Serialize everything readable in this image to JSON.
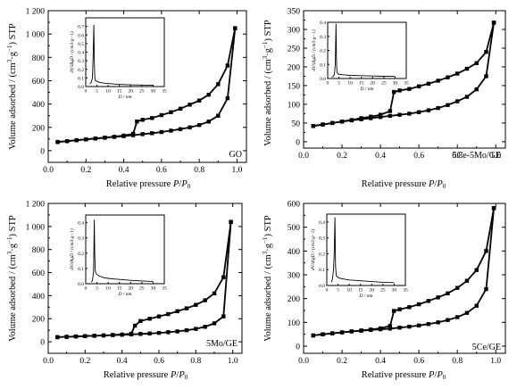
{
  "chart_data": [
    {
      "type": "line",
      "sample_label": "GO",
      "xlabel": "Relative pressure P/P0",
      "ylabel": "Volume adsorbed / (cm3·g−1) STP",
      "xlim": [
        0,
        1.05
      ],
      "ylim": [
        -100,
        1200
      ],
      "xticks": [
        "0.0",
        "0.2",
        "0.4",
        "0.6",
        "0.8",
        "1.0"
      ],
      "yticks": [
        "0",
        "200",
        "400",
        "600",
        "800",
        "1 000",
        "1 200"
      ],
      "series": [
        {
          "x": [
            0.05,
            0.1,
            0.15,
            0.2,
            0.25,
            0.3,
            0.35,
            0.4,
            0.45,
            0.5,
            0.55,
            0.6,
            0.65,
            0.7,
            0.75,
            0.8,
            0.85,
            0.9,
            0.95,
            0.99
          ],
          "y": [
            75,
            82,
            90,
            97,
            104,
            111,
            118,
            125,
            133,
            142,
            150,
            160,
            172,
            185,
            200,
            220,
            250,
            300,
            450,
            1050
          ]
        },
        {
          "x": [
            0.99,
            0.95,
            0.9,
            0.85,
            0.8,
            0.75,
            0.7,
            0.65,
            0.6,
            0.55,
            0.5,
            0.47,
            0.45,
            0.4,
            0.35,
            0.3,
            0.25,
            0.2,
            0.15,
            0.1,
            0.05
          ],
          "y": [
            1050,
            730,
            570,
            480,
            430,
            395,
            360,
            330,
            305,
            280,
            265,
            250,
            145,
            130,
            120,
            112,
            105,
            98,
            90,
            82,
            75
          ]
        }
      ],
      "inset": {
        "xlabel": "D / nm",
        "ylabel": "dV/dlgD / (cm3·g−1)",
        "xlim": [
          0,
          35
        ],
        "ylim": [
          0,
          0.8
        ],
        "xticks": [
          "0",
          "5",
          "10",
          "15",
          "20",
          "25",
          "30",
          "35"
        ],
        "yticks": [
          "0.0",
          "0.1",
          "0.2",
          "0.3",
          "0.4",
          "0.5",
          "0.6",
          "0.7"
        ],
        "x": [
          1.8,
          2.5,
          3.0,
          3.3,
          3.6,
          3.8,
          4.0,
          4.3,
          5.0,
          6.0,
          8.0,
          10,
          15,
          20,
          25,
          30
        ],
        "y": [
          0.03,
          0.05,
          0.1,
          0.35,
          0.72,
          0.3,
          0.12,
          0.07,
          0.06,
          0.05,
          0.04,
          0.035,
          0.025,
          0.02,
          0.018,
          0.015
        ]
      }
    },
    {
      "type": "line",
      "sample_label": "5Ce-5Mo/GE",
      "xlabel": "Relative pressure P/P0",
      "ylabel": "Volume adsorbed / (cm3·g−1) STP",
      "xlim": [
        0,
        1.05
      ],
      "ylim": [
        -17,
        350
      ],
      "xticks": [
        "0.0",
        "0.2",
        "0.4",
        "0.6",
        "0.8",
        "1.0"
      ],
      "yticks": [
        "0",
        "50",
        "100",
        "150",
        "200",
        "250",
        "300",
        "350"
      ],
      "series": [
        {
          "x": [
            0.05,
            0.1,
            0.15,
            0.2,
            0.25,
            0.3,
            0.35,
            0.4,
            0.45,
            0.5,
            0.55,
            0.6,
            0.65,
            0.7,
            0.75,
            0.8,
            0.85,
            0.9,
            0.95,
            0.99
          ],
          "y": [
            42,
            46,
            50,
            54,
            57,
            60,
            63,
            66,
            69,
            72,
            75,
            79,
            84,
            90,
            98,
            108,
            120,
            140,
            175,
            318
          ]
        },
        {
          "x": [
            0.99,
            0.95,
            0.9,
            0.85,
            0.8,
            0.75,
            0.7,
            0.65,
            0.6,
            0.55,
            0.5,
            0.47,
            0.45,
            0.4,
            0.35,
            0.3,
            0.25,
            0.2,
            0.15,
            0.1,
            0.05
          ],
          "y": [
            318,
            240,
            210,
            195,
            182,
            172,
            163,
            155,
            148,
            141,
            137,
            133,
            82,
            72,
            67,
            63,
            58,
            54,
            50,
            46,
            42
          ]
        }
      ],
      "inset": {
        "xlabel": "D / nm",
        "ylabel": "dV/dlgD / (cm3·g−1)",
        "xlim": [
          0,
          35
        ],
        "ylim": [
          0,
          0.4
        ],
        "xticks": [
          "0",
          "5",
          "10",
          "15",
          "20",
          "25",
          "30",
          "35"
        ],
        "yticks": [
          "0.0",
          "0.1",
          "0.2",
          "0.3",
          "0.4"
        ],
        "x": [
          1.8,
          2.5,
          3.0,
          3.4,
          3.7,
          3.9,
          4.1,
          4.4,
          5.0,
          6.0,
          8.0,
          10,
          15,
          20,
          25,
          30
        ],
        "y": [
          0.01,
          0.015,
          0.03,
          0.1,
          0.39,
          0.15,
          0.05,
          0.035,
          0.03,
          0.028,
          0.025,
          0.022,
          0.02,
          0.018,
          0.016,
          0.015
        ]
      }
    },
    {
      "type": "line",
      "sample_label": "5Mo/GE",
      "xlabel": "Relative pressure P/P0",
      "ylabel": "Volume adsorbed / (cm3·g−1) STP",
      "xlim": [
        0,
        1.05
      ],
      "ylim": [
        -100,
        1200
      ],
      "xticks": [
        "0.0",
        "0.2",
        "0.4",
        "0.6",
        "0.8",
        "1.0"
      ],
      "yticks": [
        "0",
        "200",
        "400",
        "600",
        "800",
        "1 000",
        "1 200"
      ],
      "series": [
        {
          "x": [
            0.05,
            0.1,
            0.15,
            0.2,
            0.25,
            0.3,
            0.35,
            0.4,
            0.45,
            0.5,
            0.55,
            0.6,
            0.65,
            0.7,
            0.75,
            0.8,
            0.85,
            0.9,
            0.95,
            0.99
          ],
          "y": [
            40,
            43,
            46,
            49,
            52,
            55,
            58,
            61,
            64,
            68,
            72,
            77,
            83,
            90,
            100,
            112,
            130,
            160,
            220,
            1040
          ]
        },
        {
          "x": [
            0.99,
            0.95,
            0.9,
            0.85,
            0.8,
            0.75,
            0.7,
            0.65,
            0.6,
            0.55,
            0.5,
            0.47,
            0.45,
            0.4,
            0.35,
            0.3,
            0.25,
            0.2,
            0.15,
            0.1,
            0.05
          ],
          "y": [
            1040,
            560,
            420,
            360,
            320,
            290,
            265,
            240,
            220,
            200,
            180,
            140,
            70,
            63,
            59,
            55,
            52,
            49,
            46,
            43,
            40
          ]
        }
      ],
      "inset": {
        "xlabel": "D / nm",
        "ylabel": "dV/dlgD / (cm3·g−1)",
        "xlim": [
          0,
          35
        ],
        "ylim": [
          0,
          0.45
        ],
        "xticks": [
          "0",
          "5",
          "10",
          "15",
          "20",
          "25",
          "30",
          "35"
        ],
        "yticks": [
          "0.0",
          "0.1",
          "0.2",
          "0.3",
          "0.4"
        ],
        "x": [
          2.5,
          3.0,
          3.5,
          3.8,
          4.0,
          4.2,
          4.5,
          5.0,
          6.0,
          8.0,
          10,
          15,
          20,
          25,
          30
        ],
        "y": [
          0.01,
          0.02,
          0.08,
          0.42,
          0.2,
          0.09,
          0.07,
          0.06,
          0.05,
          0.04,
          0.035,
          0.028,
          0.022,
          0.018,
          0.015
        ]
      }
    },
    {
      "type": "line",
      "sample_label": "5Ce/GE",
      "xlabel": "Relative pressure P/P0",
      "ylabel": "Volume adsorbed / (cm3·g−1) STP",
      "xlim": [
        0,
        1.05
      ],
      "ylim": [
        -30,
        600
      ],
      "xticks": [
        "0.0",
        "0.2",
        "0.4",
        "0.6",
        "0.8",
        "1.0"
      ],
      "yticks": [
        "0",
        "100",
        "200",
        "300",
        "400",
        "500",
        "600"
      ],
      "series": [
        {
          "x": [
            0.05,
            0.1,
            0.15,
            0.2,
            0.25,
            0.3,
            0.35,
            0.4,
            0.45,
            0.5,
            0.55,
            0.6,
            0.65,
            0.7,
            0.75,
            0.8,
            0.85,
            0.9,
            0.95,
            0.99
          ],
          "y": [
            45,
            50,
            54,
            58,
            62,
            65,
            68,
            71,
            74,
            78,
            82,
            87,
            93,
            100,
            110,
            122,
            140,
            170,
            240,
            580
          ]
        },
        {
          "x": [
            0.99,
            0.95,
            0.9,
            0.85,
            0.8,
            0.75,
            0.7,
            0.65,
            0.6,
            0.55,
            0.5,
            0.47,
            0.45,
            0.4,
            0.35,
            0.3,
            0.25,
            0.2,
            0.15,
            0.1,
            0.05
          ],
          "y": [
            580,
            400,
            320,
            275,
            245,
            222,
            205,
            190,
            176,
            164,
            155,
            148,
            85,
            75,
            70,
            66,
            62,
            58,
            54,
            50,
            45
          ]
        }
      ],
      "inset": {
        "xlabel": "D / nm",
        "ylabel": "dV/dlgD / (cm3·g−1)",
        "xlim": [
          0,
          35
        ],
        "ylim": [
          0,
          0.45
        ],
        "xticks": [
          "0",
          "5",
          "10",
          "15",
          "20",
          "25",
          "30",
          "35"
        ],
        "yticks": [
          "0.0",
          "0.1",
          "0.2",
          "0.3",
          "0.4"
        ],
        "x": [
          2.0,
          2.5,
          3.0,
          3.3,
          3.6,
          3.9,
          4.2,
          5.0,
          6.0,
          8.0,
          10,
          15,
          20,
          25,
          30
        ],
        "y": [
          0.02,
          0.04,
          0.1,
          0.2,
          0.43,
          0.12,
          0.06,
          0.05,
          0.045,
          0.04,
          0.035,
          0.03,
          0.025,
          0.02,
          0.018
        ]
      }
    }
  ]
}
